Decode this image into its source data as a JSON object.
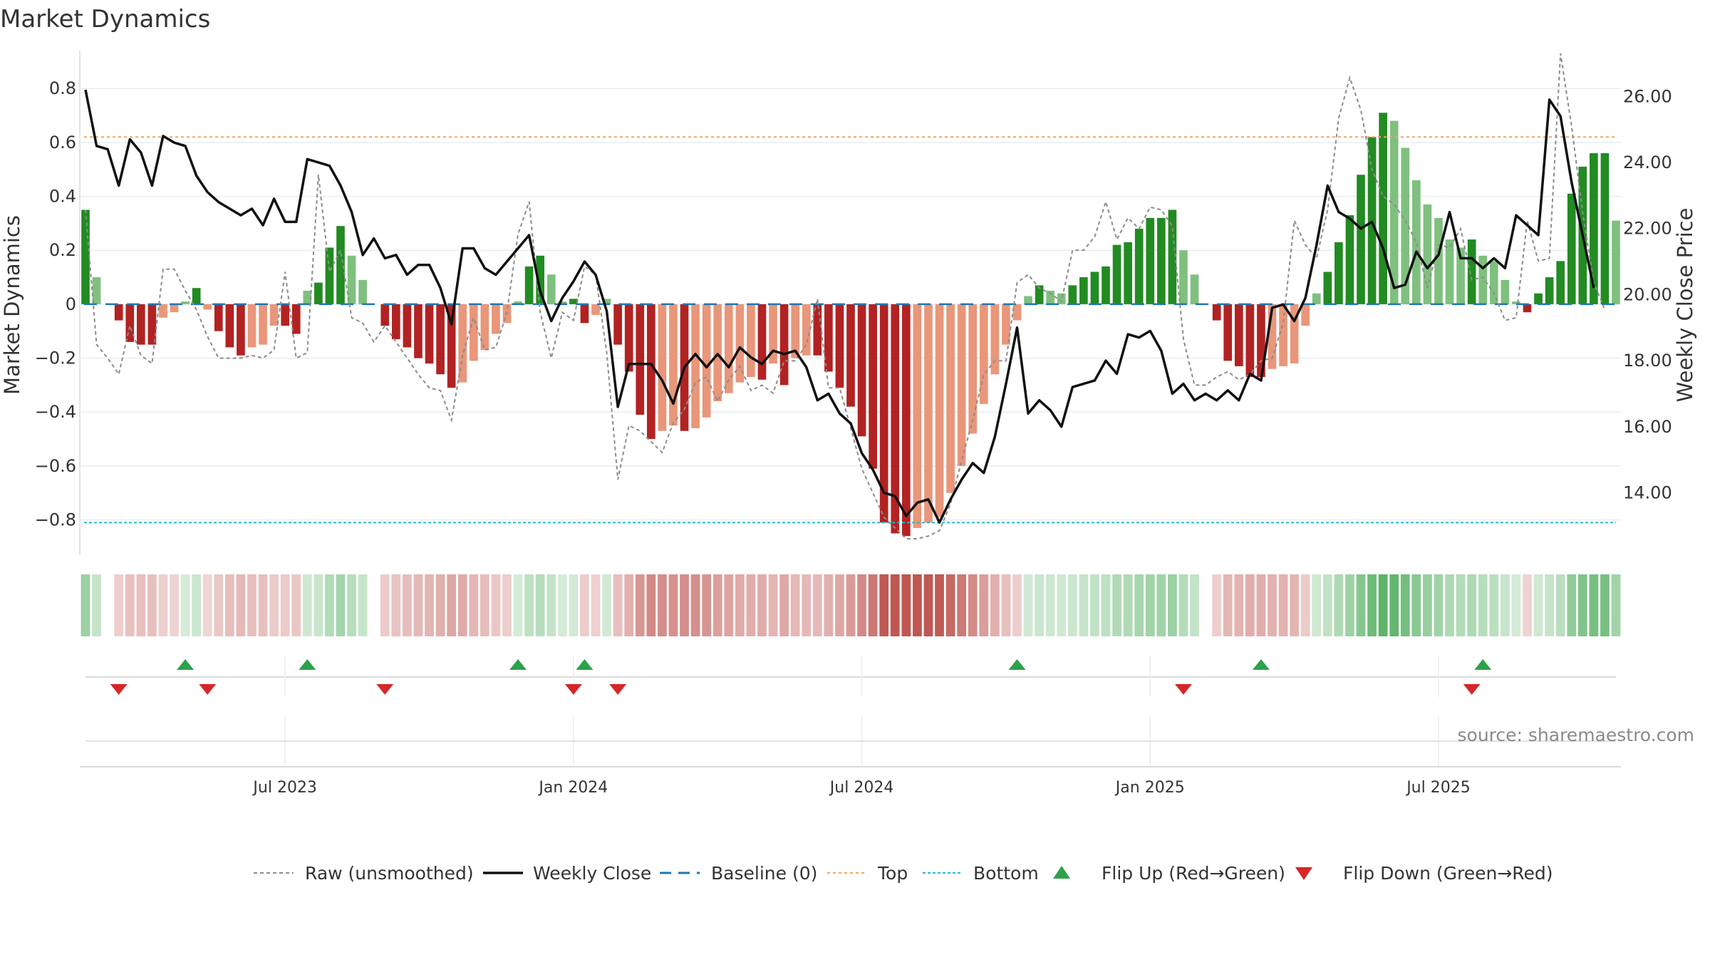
{
  "chart_data": {
    "type": "bar",
    "title": "Market Dynamics",
    "ylabel": "Market Dynamics",
    "ylabel_right": "Weekly Close Price",
    "ylim": [
      -0.92,
      0.93
    ],
    "ylim_right": [
      12.2,
      27.3
    ],
    "y_ticks": [
      {
        "v": 0.8,
        "label": "0.8"
      },
      {
        "v": 0.6,
        "label": "0.6"
      },
      {
        "v": 0.4,
        "label": "0.4"
      },
      {
        "v": 0.2,
        "label": "0.2"
      },
      {
        "v": 0,
        "label": "0"
      },
      {
        "v": -0.2,
        "label": "−0.2"
      },
      {
        "v": -0.4,
        "label": "−0.4"
      },
      {
        "v": -0.6,
        "label": "−0.6"
      },
      {
        "v": -0.8,
        "label": "−0.8"
      }
    ],
    "y_ticks_right": [
      {
        "v": 26,
        "label": "26.00"
      },
      {
        "v": 24,
        "label": "24.00"
      },
      {
        "v": 22,
        "label": "22.00"
      },
      {
        "v": 20,
        "label": "20.00"
      },
      {
        "v": 18,
        "label": "18.00"
      },
      {
        "v": 16,
        "label": "16.00"
      },
      {
        "v": 14,
        "label": "14.00"
      }
    ],
    "x_ticks": [
      {
        "i": 18,
        "label": "Jul 2023"
      },
      {
        "i": 44,
        "label": "Jan 2024"
      },
      {
        "i": 70,
        "label": "Jul 2024"
      },
      {
        "i": 96,
        "label": "Jan 2025"
      },
      {
        "i": 122,
        "label": "Jul 2025"
      }
    ],
    "top_level": 0.62,
    "bottom_level": -0.81,
    "baseline": 0,
    "dynamics": [
      0.35,
      0.1,
      0,
      -0.06,
      -0.14,
      -0.15,
      -0.15,
      -0.05,
      -0.03,
      0.01,
      0.06,
      -0.02,
      -0.1,
      -0.16,
      -0.19,
      -0.16,
      -0.15,
      -0.08,
      -0.08,
      -0.11,
      0.05,
      0.08,
      0.21,
      0.29,
      0.18,
      0.09,
      0,
      -0.08,
      -0.13,
      -0.16,
      -0.2,
      -0.22,
      -0.26,
      -0.31,
      -0.29,
      -0.21,
      -0.17,
      -0.11,
      -0.07,
      0.01,
      0.14,
      0.18,
      0.11,
      0.01,
      0.02,
      -0.07,
      -0.04,
      0.02,
      -0.15,
      -0.25,
      -0.41,
      -0.5,
      -0.47,
      -0.45,
      -0.47,
      -0.46,
      -0.42,
      -0.36,
      -0.33,
      -0.29,
      -0.27,
      -0.28,
      -0.22,
      -0.3,
      -0.2,
      -0.19,
      -0.19,
      -0.25,
      -0.31,
      -0.38,
      -0.49,
      -0.61,
      -0.81,
      -0.85,
      -0.86,
      -0.83,
      -0.81,
      -0.79,
      -0.7,
      -0.6,
      -0.48,
      -0.37,
      -0.26,
      -0.15,
      -0.06,
      0.03,
      0.07,
      0.05,
      0.04,
      0.07,
      0.1,
      0.12,
      0.14,
      0.22,
      0.23,
      0.28,
      0.32,
      0.32,
      0.35,
      0.2,
      0.11,
      0,
      -0.06,
      -0.21,
      -0.23,
      -0.27,
      -0.27,
      -0.24,
      -0.23,
      -0.22,
      -0.08,
      0.04,
      0.12,
      0.23,
      0.33,
      0.48,
      0.62,
      0.71,
      0.68,
      0.58,
      0.46,
      0.37,
      0.32,
      0.24,
      0.21,
      0.24,
      0.18,
      0.16,
      0.09,
      0.01,
      -0.03,
      0.04,
      0.1,
      0.16,
      0.41,
      0.51,
      0.56,
      0.56,
      0.31
    ],
    "raw": [
      0.35,
      -0.15,
      -0.2,
      -0.26,
      -0.08,
      -0.19,
      -0.22,
      0.13,
      0.13,
      0.05,
      -0.02,
      -0.12,
      -0.2,
      -0.2,
      -0.2,
      -0.19,
      -0.2,
      -0.17,
      0.12,
      -0.2,
      -0.18,
      0.48,
      0.12,
      0.2,
      -0.05,
      -0.07,
      -0.14,
      -0.08,
      -0.14,
      -0.2,
      -0.26,
      -0.31,
      -0.32,
      -0.43,
      -0.19,
      -0.05,
      -0.17,
      -0.16,
      -0.03,
      0.26,
      0.38,
      -0.03,
      -0.2,
      -0.03,
      -0.06,
      0.14,
      0.11,
      -0.18,
      -0.65,
      -0.45,
      -0.47,
      -0.51,
      -0.55,
      -0.44,
      -0.39,
      -0.29,
      -0.27,
      -0.36,
      -0.28,
      -0.23,
      -0.32,
      -0.3,
      -0.33,
      -0.21,
      -0.21,
      -0.15,
      0.02,
      -0.31,
      -0.31,
      -0.46,
      -0.61,
      -0.7,
      -0.79,
      -0.83,
      -0.87,
      -0.87,
      -0.86,
      -0.84,
      -0.74,
      -0.58,
      -0.43,
      -0.26,
      -0.21,
      -0.21,
      0.08,
      0.11,
      0.06,
      0.04,
      0.01,
      0.2,
      0.2,
      0.25,
      0.38,
      0.24,
      0.32,
      0.28,
      0.36,
      0.35,
      0.29,
      -0.13,
      -0.3,
      -0.3,
      -0.27,
      -0.25,
      -0.28,
      -0.26,
      -0.21,
      -0.2,
      -0.07,
      0.31,
      0.22,
      0.17,
      0.35,
      0.69,
      0.84,
      0.72,
      0.5,
      0.4,
      0.37,
      0.31,
      0.23,
      0.06,
      0.22,
      0.21,
      0.28,
      0.09,
      0.1,
      0.04,
      -0.06,
      -0.05,
      0.31,
      0.16,
      0.17,
      0.93,
      0.66,
      0.34,
      0.08,
      -0.02
    ],
    "weekly_close": [
      26.2,
      24.5,
      24.4,
      23.3,
      24.7,
      24.3,
      23.3,
      24.8,
      24.6,
      24.5,
      23.6,
      23.1,
      22.8,
      22.6,
      22.4,
      22.6,
      22.1,
      22.9,
      22.2,
      22.2,
      24.1,
      24.0,
      23.9,
      23.3,
      22.5,
      21.2,
      21.7,
      21.1,
      21.2,
      20.6,
      20.9,
      20.9,
      20.2,
      19.1,
      21.4,
      21.4,
      20.8,
      20.6,
      21.0,
      21.4,
      21.8,
      20.1,
      19.2,
      19.9,
      20.4,
      21.0,
      20.6,
      19.5,
      16.6,
      17.9,
      17.9,
      17.9,
      17.4,
      16.7,
      17.8,
      18.2,
      17.8,
      18.2,
      17.8,
      18.4,
      18.1,
      17.9,
      18.3,
      18.2,
      18.3,
      17.8,
      16.8,
      17.0,
      16.4,
      16.1,
      15.2,
      14.7,
      14.0,
      13.9,
      13.3,
      13.7,
      13.8,
      13.1,
      13.8,
      14.4,
      14.9,
      14.6,
      15.7,
      17.3,
      19.0,
      16.4,
      16.8,
      16.5,
      16.0,
      17.2,
      17.3,
      17.4,
      18.0,
      17.6,
      18.8,
      18.7,
      18.9,
      18.3,
      17.0,
      17.3,
      16.8,
      17.0,
      16.8,
      17.1,
      16.8,
      17.6,
      17.4,
      19.6,
      19.7,
      19.2,
      19.9,
      21.5,
      23.3,
      22.5,
      22.3,
      22.0,
      22.2,
      21.4,
      20.2,
      20.3,
      21.3,
      20.8,
      21.2,
      22.5,
      21.1,
      21.1,
      20.8,
      21.1,
      20.8,
      22.4,
      22.1,
      21.8,
      25.9,
      25.4,
      23.4,
      21.8,
      20.2
    ],
    "flip_up_weeks": [
      9,
      20,
      39,
      45,
      84,
      106,
      126
    ],
    "flip_down_weeks": [
      3,
      11,
      27,
      44,
      48,
      99,
      125
    ],
    "source": "source: sharemaestro.com",
    "legend": [
      "Raw (unsmoothed)",
      "Weekly Close",
      "Baseline (0)",
      "Top",
      "Bottom",
      "Flip Up (Red→Green)",
      "Flip Down (Green→Red)"
    ],
    "grid": true,
    "legend_position": "bottom-center",
    "colors": {
      "pos_strong": "#228b22",
      "pos_soft": "#7fc07f",
      "neg_strong": "#b22222",
      "neg_soft": "#e9967a",
      "raw": "#8c8c8c",
      "close": "#111111",
      "baseline": "#1f77b4",
      "top": "#f4a460",
      "bottom": "#17becf",
      "flip_up": "#2ca24a",
      "flip_down": "#d62728"
    }
  }
}
